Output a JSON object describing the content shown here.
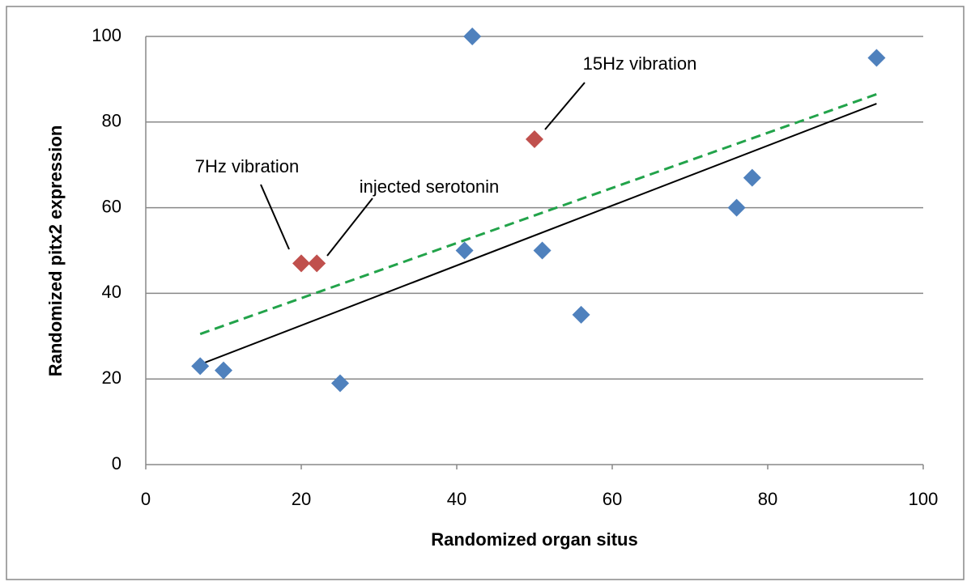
{
  "chart_data": {
    "type": "scatter",
    "xlabel": "Randomized organ situs",
    "ylabel": "Randomized pitx2 expression",
    "series": [
      {
        "color": "#4f81bd",
        "x": [
          7,
          10,
          25,
          41,
          42,
          51,
          56,
          76,
          78,
          94
        ],
        "values": [
          23,
          22,
          19,
          50,
          100,
          50,
          35,
          60,
          67,
          95
        ]
      },
      {
        "color": "#c0504d",
        "x": [
          20,
          22,
          50
        ],
        "values": [
          47,
          47,
          76
        ]
      }
    ],
    "trendlines": [
      {
        "color": "#000000",
        "dashed": false,
        "x": [
          7,
          94
        ],
        "values": [
          23.4,
          84.3
        ]
      },
      {
        "color": "#22a34a",
        "dashed": true,
        "x": [
          7,
          94
        ],
        "values": [
          30.5,
          86.5
        ]
      }
    ],
    "annotations": [
      {
        "text": "15Hz vibration"
      },
      {
        "text": "7Hz vibration"
      },
      {
        "text": "injected serotonin"
      }
    ],
    "xlim": [
      0,
      100
    ],
    "xticks": [
      0,
      20,
      40,
      60,
      80,
      100
    ],
    "ylim": [
      0,
      100
    ],
    "yticks": [
      0,
      20,
      40,
      60,
      80,
      100
    ],
    "grid": true
  }
}
